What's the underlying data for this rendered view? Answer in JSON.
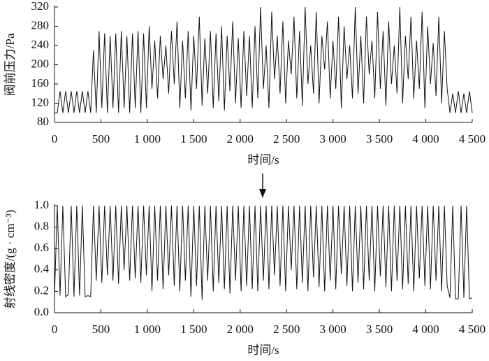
{
  "chart_data": [
    {
      "type": "line",
      "x_label": "时间/s",
      "y_label": "阀前压力/Pa",
      "color": "#111111",
      "xlim": [
        0,
        4500
      ],
      "ylim": [
        80,
        320
      ],
      "xticks": [
        0,
        500,
        {
          "value": 1000,
          "label": "1 000"
        },
        {
          "value": 1500,
          "label": "1 500"
        },
        {
          "value": 2000,
          "label": "2 000"
        },
        {
          "value": 2500,
          "label": "2 500"
        },
        {
          "value": 3000,
          "label": "3 000"
        },
        {
          "value": 3500,
          "label": "3 500"
        },
        {
          "value": 4000,
          "label": "4 000"
        },
        {
          "value": 4500,
          "label": "4 500"
        }
      ],
      "yticks": [
        80,
        120,
        160,
        200,
        240,
        280,
        320
      ],
      "x": [
        0,
        30,
        60,
        90,
        120,
        150,
        180,
        210,
        240,
        270,
        300,
        330,
        360,
        390,
        420,
        450,
        480,
        510,
        540,
        570,
        600,
        630,
        660,
        690,
        720,
        750,
        780,
        810,
        840,
        870,
        900,
        930,
        960,
        990,
        1020,
        1050,
        1080,
        1110,
        1140,
        1170,
        1200,
        1230,
        1260,
        1290,
        1320,
        1350,
        1380,
        1410,
        1440,
        1470,
        1500,
        1530,
        1560,
        1590,
        1620,
        1650,
        1680,
        1710,
        1740,
        1770,
        1800,
        1830,
        1860,
        1890,
        1920,
        1950,
        1980,
        2010,
        2040,
        2070,
        2100,
        2130,
        2160,
        2190,
        2220,
        2250,
        2280,
        2310,
        2340,
        2370,
        2400,
        2430,
        2460,
        2490,
        2520,
        2550,
        2580,
        2610,
        2640,
        2670,
        2700,
        2730,
        2760,
        2790,
        2820,
        2850,
        2880,
        2910,
        2940,
        2970,
        3000,
        3030,
        3060,
        3090,
        3120,
        3150,
        3180,
        3210,
        3240,
        3270,
        3300,
        3330,
        3360,
        3390,
        3420,
        3450,
        3480,
        3510,
        3540,
        3570,
        3600,
        3630,
        3660,
        3690,
        3720,
        3750,
        3780,
        3810,
        3840,
        3870,
        3900,
        3930,
        3960,
        3990,
        4020,
        4050,
        4080,
        4110,
        4140,
        4170,
        4200,
        4230,
        4260,
        4290,
        4320,
        4350,
        4380,
        4410,
        4440,
        4470,
        4500
      ],
      "values": [
        100,
        100,
        145,
        100,
        145,
        100,
        145,
        100,
        145,
        100,
        145,
        100,
        145,
        100,
        230,
        100,
        270,
        110,
        265,
        100,
        260,
        110,
        265,
        100,
        270,
        110,
        260,
        100,
        265,
        110,
        270,
        100,
        265,
        110,
        280,
        150,
        250,
        130,
        260,
        170,
        240,
        140,
        270,
        160,
        290,
        110,
        250,
        130,
        270,
        105,
        260,
        150,
        300,
        115,
        255,
        140,
        270,
        110,
        265,
        125,
        280,
        105,
        260,
        145,
        290,
        120,
        255,
        110,
        270,
        135,
        260,
        110,
        280,
        130,
        320,
        150,
        240,
        110,
        310,
        170,
        260,
        140,
        290,
        120,
        250,
        180,
        300,
        130,
        270,
        115,
        320,
        160,
        240,
        140,
        310,
        120,
        260,
        190,
        290,
        130,
        250,
        150,
        300,
        110,
        280,
        170,
        240,
        130,
        320,
        140,
        260,
        120,
        300,
        180,
        250,
        130,
        310,
        150,
        270,
        115,
        290,
        160,
        240,
        140,
        320,
        120,
        260,
        170,
        300,
        130,
        250,
        150,
        310,
        110,
        280,
        160,
        245,
        135,
        300,
        120,
        270,
        150,
        100,
        140,
        100,
        145,
        100,
        140,
        100,
        145,
        100
      ]
    },
    {
      "type": "line",
      "x_label": "时间/s",
      "y_label": "射线密度/(g · cm⁻³)",
      "color": "#111111",
      "xlim": [
        0,
        4500
      ],
      "ylim": [
        0,
        1
      ],
      "xticks": [
        0,
        500,
        {
          "value": 1000,
          "label": "1 000"
        },
        {
          "value": 1500,
          "label": "1 500"
        },
        {
          "value": 2000,
          "label": "2 000"
        },
        {
          "value": 2500,
          "label": "2 500"
        },
        {
          "value": 3000,
          "label": "3 000"
        },
        {
          "value": 3500,
          "label": "3 500"
        },
        {
          "value": 4000,
          "label": "4 000"
        },
        {
          "value": 4500,
          "label": "4 500"
        }
      ],
      "yticks": [
        {
          "value": 0,
          "label": "0.0"
        },
        0.2,
        0.4,
        0.6,
        0.8,
        {
          "value": 1,
          "label": "1.0"
        }
      ],
      "x": [
        0,
        30,
        60,
        90,
        120,
        150,
        180,
        210,
        240,
        270,
        300,
        330,
        360,
        390,
        420,
        450,
        480,
        510,
        540,
        570,
        600,
        630,
        660,
        690,
        720,
        750,
        780,
        810,
        840,
        870,
        900,
        930,
        960,
        990,
        1020,
        1050,
        1080,
        1110,
        1140,
        1170,
        1200,
        1230,
        1260,
        1290,
        1320,
        1350,
        1380,
        1410,
        1440,
        1470,
        1500,
        1530,
        1560,
        1590,
        1620,
        1650,
        1680,
        1710,
        1740,
        1770,
        1800,
        1830,
        1860,
        1890,
        1920,
        1950,
        1980,
        2010,
        2040,
        2070,
        2100,
        2130,
        2160,
        2190,
        2220,
        2250,
        2280,
        2310,
        2340,
        2370,
        2400,
        2430,
        2460,
        2490,
        2520,
        2550,
        2580,
        2610,
        2640,
        2670,
        2700,
        2730,
        2760,
        2790,
        2820,
        2850,
        2880,
        2910,
        2940,
        2970,
        3000,
        3030,
        3060,
        3090,
        3120,
        3150,
        3180,
        3210,
        3240,
        3270,
        3300,
        3330,
        3360,
        3390,
        3420,
        3450,
        3480,
        3510,
        3540,
        3570,
        3600,
        3630,
        3660,
        3690,
        3720,
        3750,
        3780,
        3810,
        3840,
        3870,
        3900,
        3930,
        3960,
        3990,
        4020,
        4050,
        4080,
        4110,
        4140,
        4170,
        4200,
        4230,
        4260,
        4290,
        4320,
        4350,
        4380,
        4410,
        4440,
        4470,
        4500
      ],
      "values": [
        0.15,
        1.0,
        0.16,
        1.0,
        0.15,
        0.17,
        1.0,
        0.15,
        1.0,
        0.16,
        1.0,
        0.15,
        0.16,
        0.15,
        1.0,
        0.3,
        1.0,
        0.28,
        1.0,
        0.35,
        1.0,
        0.3,
        1.0,
        0.27,
        1.0,
        0.4,
        1.0,
        0.3,
        1.0,
        0.32,
        1.0,
        0.28,
        1.0,
        0.35,
        1.0,
        0.2,
        1.0,
        0.3,
        1.0,
        0.22,
        1.0,
        0.35,
        1.0,
        0.25,
        1.0,
        0.2,
        1.0,
        0.3,
        1.0,
        0.15,
        1.0,
        0.25,
        1.0,
        0.12,
        1.0,
        0.3,
        1.0,
        0.2,
        1.0,
        0.28,
        1.0,
        0.22,
        1.0,
        0.18,
        1.0,
        0.3,
        1.0,
        0.2,
        1.0,
        0.25,
        1.0,
        0.22,
        1.0,
        0.2,
        1.0,
        0.3,
        1.0,
        0.22,
        1.0,
        0.35,
        1.0,
        0.25,
        1.0,
        0.2,
        1.0,
        0.4,
        1.0,
        0.22,
        1.0,
        0.28,
        1.0,
        0.2,
        1.0,
        0.33,
        1.0,
        0.24,
        1.0,
        0.2,
        1.0,
        0.3,
        1.0,
        0.22,
        1.0,
        0.36,
        1.0,
        0.25,
        1.0,
        0.2,
        1.0,
        0.28,
        1.0,
        0.22,
        1.0,
        0.3,
        1.0,
        0.2,
        1.0,
        0.34,
        1.0,
        0.24,
        1.0,
        0.2,
        1.0,
        0.3,
        1.0,
        0.22,
        1.0,
        0.27,
        1.0,
        0.2,
        1.0,
        0.32,
        1.0,
        0.25,
        1.0,
        0.22,
        1.0,
        0.3,
        1.0,
        0.2,
        1.0,
        0.25,
        0.14,
        1.0,
        0.13,
        0.13,
        1.0,
        0.14,
        1.0,
        0.13,
        0.14
      ]
    }
  ]
}
